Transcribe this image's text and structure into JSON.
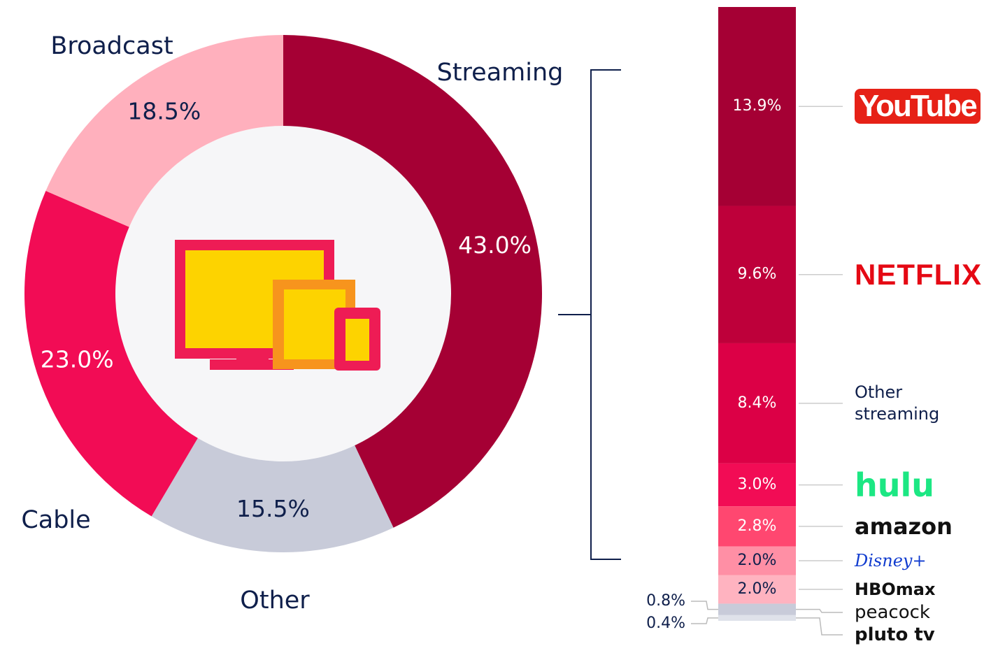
{
  "chart_data": [
    {
      "type": "donut",
      "categories": [
        "Streaming",
        "Other",
        "Cable",
        "Broadcast"
      ],
      "values": [
        43.0,
        15.5,
        23.0,
        18.5
      ],
      "value_labels": [
        "43.0%",
        "15.5%",
        "23.0%",
        "18.5%"
      ],
      "colors": [
        "#a50034",
        "#c8cbd9",
        "#f20c55",
        "#ffb0bd"
      ]
    },
    {
      "type": "stacked_bar",
      "categories": [
        "YouTube",
        "NETFLIX",
        "Other streaming",
        "hulu",
        "amazon",
        "Disney+",
        "HBOmax",
        "peacock",
        "pluto tv"
      ],
      "values": [
        13.9,
        9.6,
        8.4,
        3.0,
        2.8,
        2.0,
        2.0,
        0.8,
        0.4
      ],
      "value_labels": [
        "13.9%",
        "9.6%",
        "8.4%",
        "3.0%",
        "2.8%",
        "2.0%",
        "2.0%",
        "0.8%",
        "0.4%"
      ],
      "colors": [
        "#a50034",
        "#be003a",
        "#dc0046",
        "#f20c55",
        "#ff4770",
        "#ff8fa5",
        "#ffb3c0",
        "#c8cbd9",
        "#dfe2ea"
      ]
    }
  ]
}
